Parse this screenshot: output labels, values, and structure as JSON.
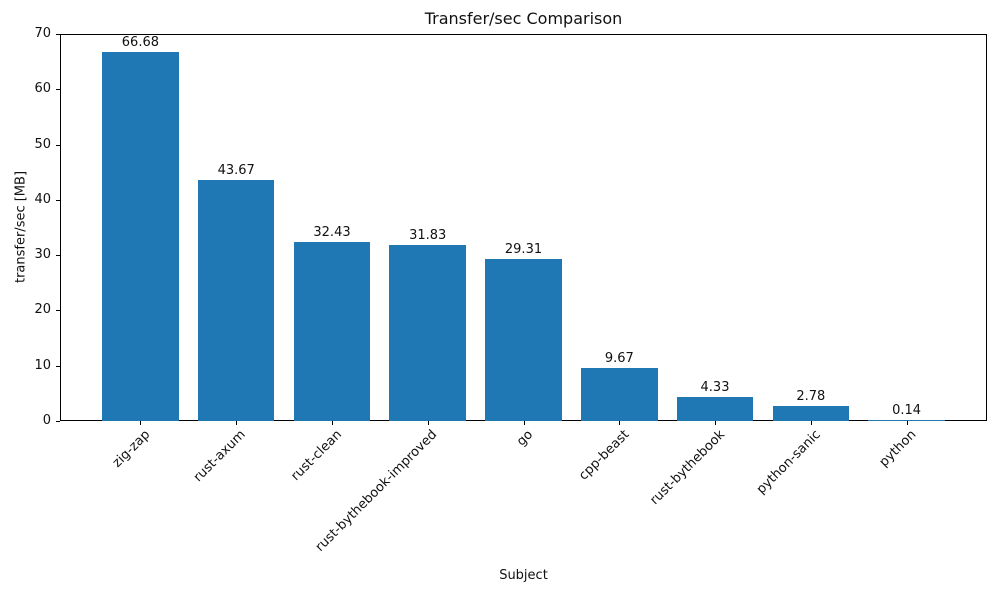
{
  "chart_data": {
    "type": "bar",
    "title": "Transfer/sec Comparison",
    "xlabel": "Subject",
    "ylabel": "transfer/sec [MB]",
    "categories": [
      "zig-zap",
      "rust-axum",
      "rust-clean",
      "rust-bythebook-improved",
      "go",
      "cpp-beast",
      "rust-bythebook",
      "python-sanic",
      "python"
    ],
    "values": [
      66.68,
      43.67,
      32.43,
      31.83,
      29.31,
      9.67,
      4.33,
      2.78,
      0.14
    ],
    "bar_labels": [
      "66.68",
      "43.67",
      "32.43",
      "31.83",
      "29.31",
      "9.67",
      "4.33",
      "2.78",
      "0.14"
    ],
    "ylim": [
      0,
      70
    ],
    "yticks": [
      0,
      10,
      20,
      30,
      40,
      50,
      60,
      70
    ],
    "bar_color": "#1f77b4",
    "grid": false,
    "legend_position": "none"
  }
}
